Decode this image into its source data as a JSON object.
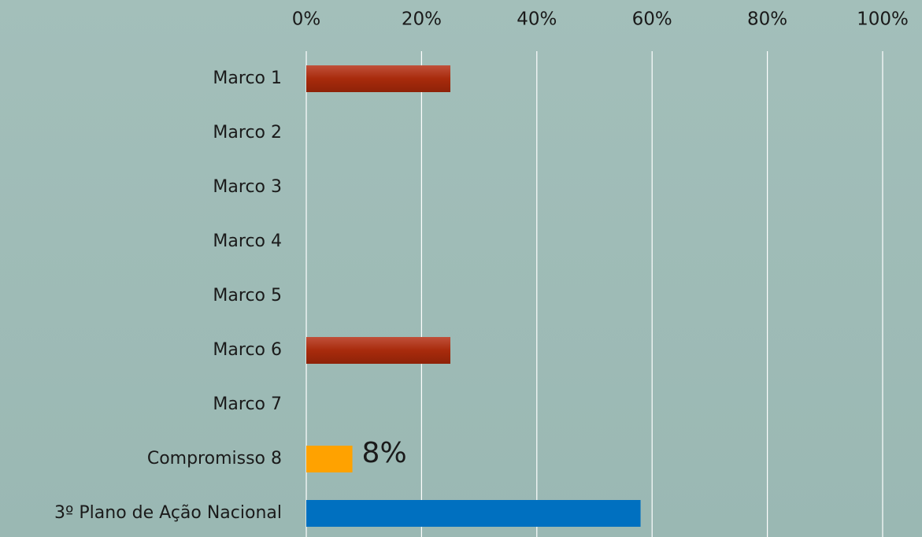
{
  "chart_data": {
    "type": "hbar",
    "categories": [
      "Marco 1",
      "Marco 2",
      "Marco 3",
      "Marco 4",
      "Marco 5",
      "Marco 6",
      "Marco 7",
      "Compromisso 8",
      "3º Plano de Ação Nacional"
    ],
    "values": [
      25,
      0,
      0,
      0,
      0,
      25,
      0,
      8,
      58
    ],
    "value_labels": [
      null,
      null,
      null,
      null,
      null,
      null,
      null,
      "8%",
      null
    ],
    "colors": [
      "#a82b0c",
      "#a82b0c",
      "#a82b0c",
      "#a82b0c",
      "#a82b0c",
      "#a82b0c",
      "#a82b0c",
      "#ffa200",
      "#0070c0"
    ],
    "xlim": [
      0,
      100
    ],
    "xticks": [
      {
        "value": 0,
        "label": "0%"
      },
      {
        "value": 20,
        "label": "20%"
      },
      {
        "value": 40,
        "label": "40%"
      },
      {
        "value": 60,
        "label": "60%"
      },
      {
        "value": 80,
        "label": "80%"
      },
      {
        "value": 100,
        "label": "100%"
      }
    ],
    "grid": true
  }
}
